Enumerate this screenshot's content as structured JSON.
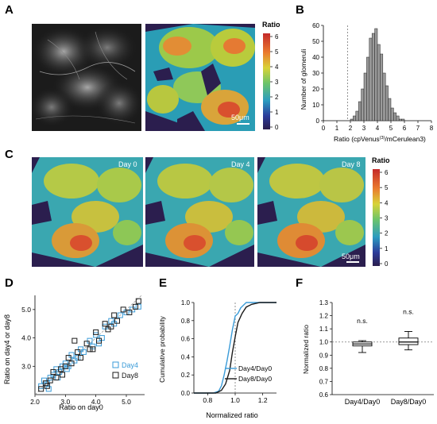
{
  "panels": {
    "A": {
      "label": "A",
      "scalebar": "50μm",
      "colorbar": {
        "title": "Ratio",
        "ticks": [
          "0",
          "1",
          "2",
          "3",
          "4",
          "5",
          "6"
        ]
      }
    },
    "B": {
      "label": "B",
      "xlabel": "Ratio (cpVenus",
      "xlabel_sup": "(3)",
      "xlabel_end": "/mCerulean3)",
      "ylabel": "Number of glomeruli"
    },
    "C": {
      "label": "C",
      "days": [
        "Day 0",
        "Day 4",
        "Day 8"
      ],
      "scalebar": "50μm",
      "colorbar": {
        "title": "Ratio",
        "ticks": [
          "0",
          "1",
          "2",
          "3",
          "4",
          "5",
          "6"
        ]
      }
    },
    "D": {
      "label": "D",
      "xlabel": "Ratio on day0",
      "ylabel": "Ratio on day4 or day8"
    },
    "E": {
      "label": "E",
      "xlabel": "Normalized ratio",
      "ylabel": "Cumulative probability"
    },
    "F": {
      "label": "F",
      "ylabel": "Normalized ratio",
      "annotations": [
        "n.s.",
        "n.s."
      ]
    }
  },
  "colors": {
    "day4": "#3a9bd8",
    "day8": "#1a1a1a",
    "hist_bar": "#9a9a9a",
    "dashed": "#777777"
  },
  "chart_data": [
    {
      "panel": "B",
      "type": "bar",
      "xlabel": "Ratio (cpVenus(3)/mCerulean3)",
      "ylabel": "Number of glomeruli",
      "x_ticks": [
        0,
        1,
        2,
        3,
        4,
        5,
        6,
        7,
        8
      ],
      "y_ticks": [
        0,
        10,
        20,
        30,
        40,
        50,
        60
      ],
      "xlim": [
        0,
        8
      ],
      "ylim": [
        0,
        60
      ],
      "bin_width": 0.2,
      "bin_starts": [
        2.0,
        2.2,
        2.4,
        2.6,
        2.8,
        3.0,
        3.2,
        3.4,
        3.6,
        3.8,
        4.0,
        4.2,
        4.4,
        4.6,
        4.8,
        5.0,
        5.2,
        5.4,
        5.6,
        5.8
      ],
      "values": [
        1,
        3,
        6,
        12,
        20,
        30,
        40,
        52,
        55,
        58,
        48,
        42,
        30,
        22,
        14,
        8,
        5,
        3,
        1,
        1
      ],
      "reference_line_x": 1.8
    },
    {
      "panel": "D",
      "type": "scatter",
      "xlabel": "Ratio on day0",
      "ylabel": "Ratio on day4 or day8",
      "x_ticks": [
        2.0,
        3.0,
        4.0,
        5.0
      ],
      "y_ticks": [
        3.0,
        4.0,
        5.0
      ],
      "xlim": [
        2.0,
        5.6
      ],
      "ylim": [
        2.0,
        5.5
      ],
      "legend": [
        "Day4",
        "Day8"
      ],
      "legend_position": "bottom-right",
      "series": [
        {
          "name": "Day4",
          "x": [
            2.2,
            2.3,
            2.4,
            2.5,
            2.6,
            2.7,
            2.8,
            2.9,
            3.0,
            3.1,
            3.2,
            3.3,
            3.5,
            3.6,
            3.8,
            3.9,
            4.0,
            4.2,
            4.3,
            4.5,
            4.6,
            4.8,
            5.0,
            5.2,
            5.4,
            2.45,
            2.75,
            3.05,
            3.4,
            4.1
          ],
          "y": [
            2.3,
            2.5,
            2.4,
            2.6,
            2.7,
            2.9,
            2.8,
            3.0,
            3.1,
            3.0,
            3.4,
            3.2,
            3.6,
            3.5,
            3.9,
            3.7,
            4.1,
            4.0,
            4.4,
            4.6,
            4.5,
            4.8,
            4.9,
            5.0,
            5.1,
            2.2,
            2.6,
            2.9,
            3.3,
            3.8
          ]
        },
        {
          "name": "Day8",
          "x": [
            2.2,
            2.35,
            2.5,
            2.6,
            2.7,
            2.85,
            3.0,
            3.1,
            3.2,
            3.4,
            3.5,
            3.7,
            3.8,
            4.0,
            4.1,
            4.3,
            4.4,
            4.6,
            4.7,
            4.9,
            5.1,
            5.3,
            5.4,
            2.4,
            2.9,
            3.3,
            3.9,
            4.5
          ],
          "y": [
            2.2,
            2.4,
            2.5,
            2.8,
            2.6,
            2.9,
            3.0,
            3.3,
            3.1,
            3.5,
            3.3,
            3.8,
            3.6,
            4.2,
            3.9,
            4.5,
            4.3,
            4.8,
            4.6,
            5.0,
            4.9,
            5.1,
            5.3,
            2.3,
            2.7,
            3.9,
            3.6,
            4.4
          ]
        }
      ]
    },
    {
      "panel": "E",
      "type": "line",
      "xlabel": "Normalized ratio",
      "ylabel": "Cumulative probability",
      "x_ticks": [
        0.8,
        1.0,
        1.2
      ],
      "y_ticks": [
        0.0,
        0.2,
        0.4,
        0.6,
        0.8,
        1.0
      ],
      "xlim": [
        0.7,
        1.3
      ],
      "ylim": [
        0,
        1.0
      ],
      "reference_line_x": 1.0,
      "legend": [
        "Day4/Day0",
        "Day8/Day0"
      ],
      "legend_position": "bottom-right",
      "series": [
        {
          "name": "Day4/Day0",
          "x": [
            0.7,
            0.84,
            0.88,
            0.9,
            0.92,
            0.94,
            0.96,
            0.98,
            1.0,
            1.02,
            1.04,
            1.08,
            1.3
          ],
          "y": [
            0,
            0,
            0.02,
            0.08,
            0.2,
            0.35,
            0.52,
            0.7,
            0.85,
            0.88,
            0.94,
            1.0,
            1.0
          ]
        },
        {
          "name": "Day8/Day0",
          "x": [
            0.7,
            0.86,
            0.9,
            0.93,
            0.96,
            0.98,
            1.0,
            1.02,
            1.05,
            1.08,
            1.12,
            1.18,
            1.3
          ],
          "y": [
            0,
            0,
            0.03,
            0.1,
            0.25,
            0.45,
            0.62,
            0.78,
            0.88,
            0.95,
            0.98,
            1.0,
            1.0
          ]
        }
      ]
    },
    {
      "panel": "F",
      "type": "box",
      "ylabel": "Normalized ratio",
      "categories": [
        "Day4/Day0",
        "Day8/Day0"
      ],
      "y_ticks": [
        0.6,
        0.7,
        0.8,
        0.9,
        1.0,
        1.1,
        1.2,
        1.3
      ],
      "ylim": [
        0.6,
        1.3
      ],
      "reference_line_y": 1.0,
      "boxes": [
        {
          "name": "Day4/Day0",
          "min": 0.92,
          "q1": 0.97,
          "median": 0.985,
          "q3": 1.0,
          "max": 1.01
        },
        {
          "name": "Day8/Day0",
          "min": 0.94,
          "q1": 0.98,
          "median": 1.0,
          "q3": 1.03,
          "max": 1.08
        }
      ],
      "annotations": [
        "n.s.",
        "n.s."
      ]
    }
  ]
}
